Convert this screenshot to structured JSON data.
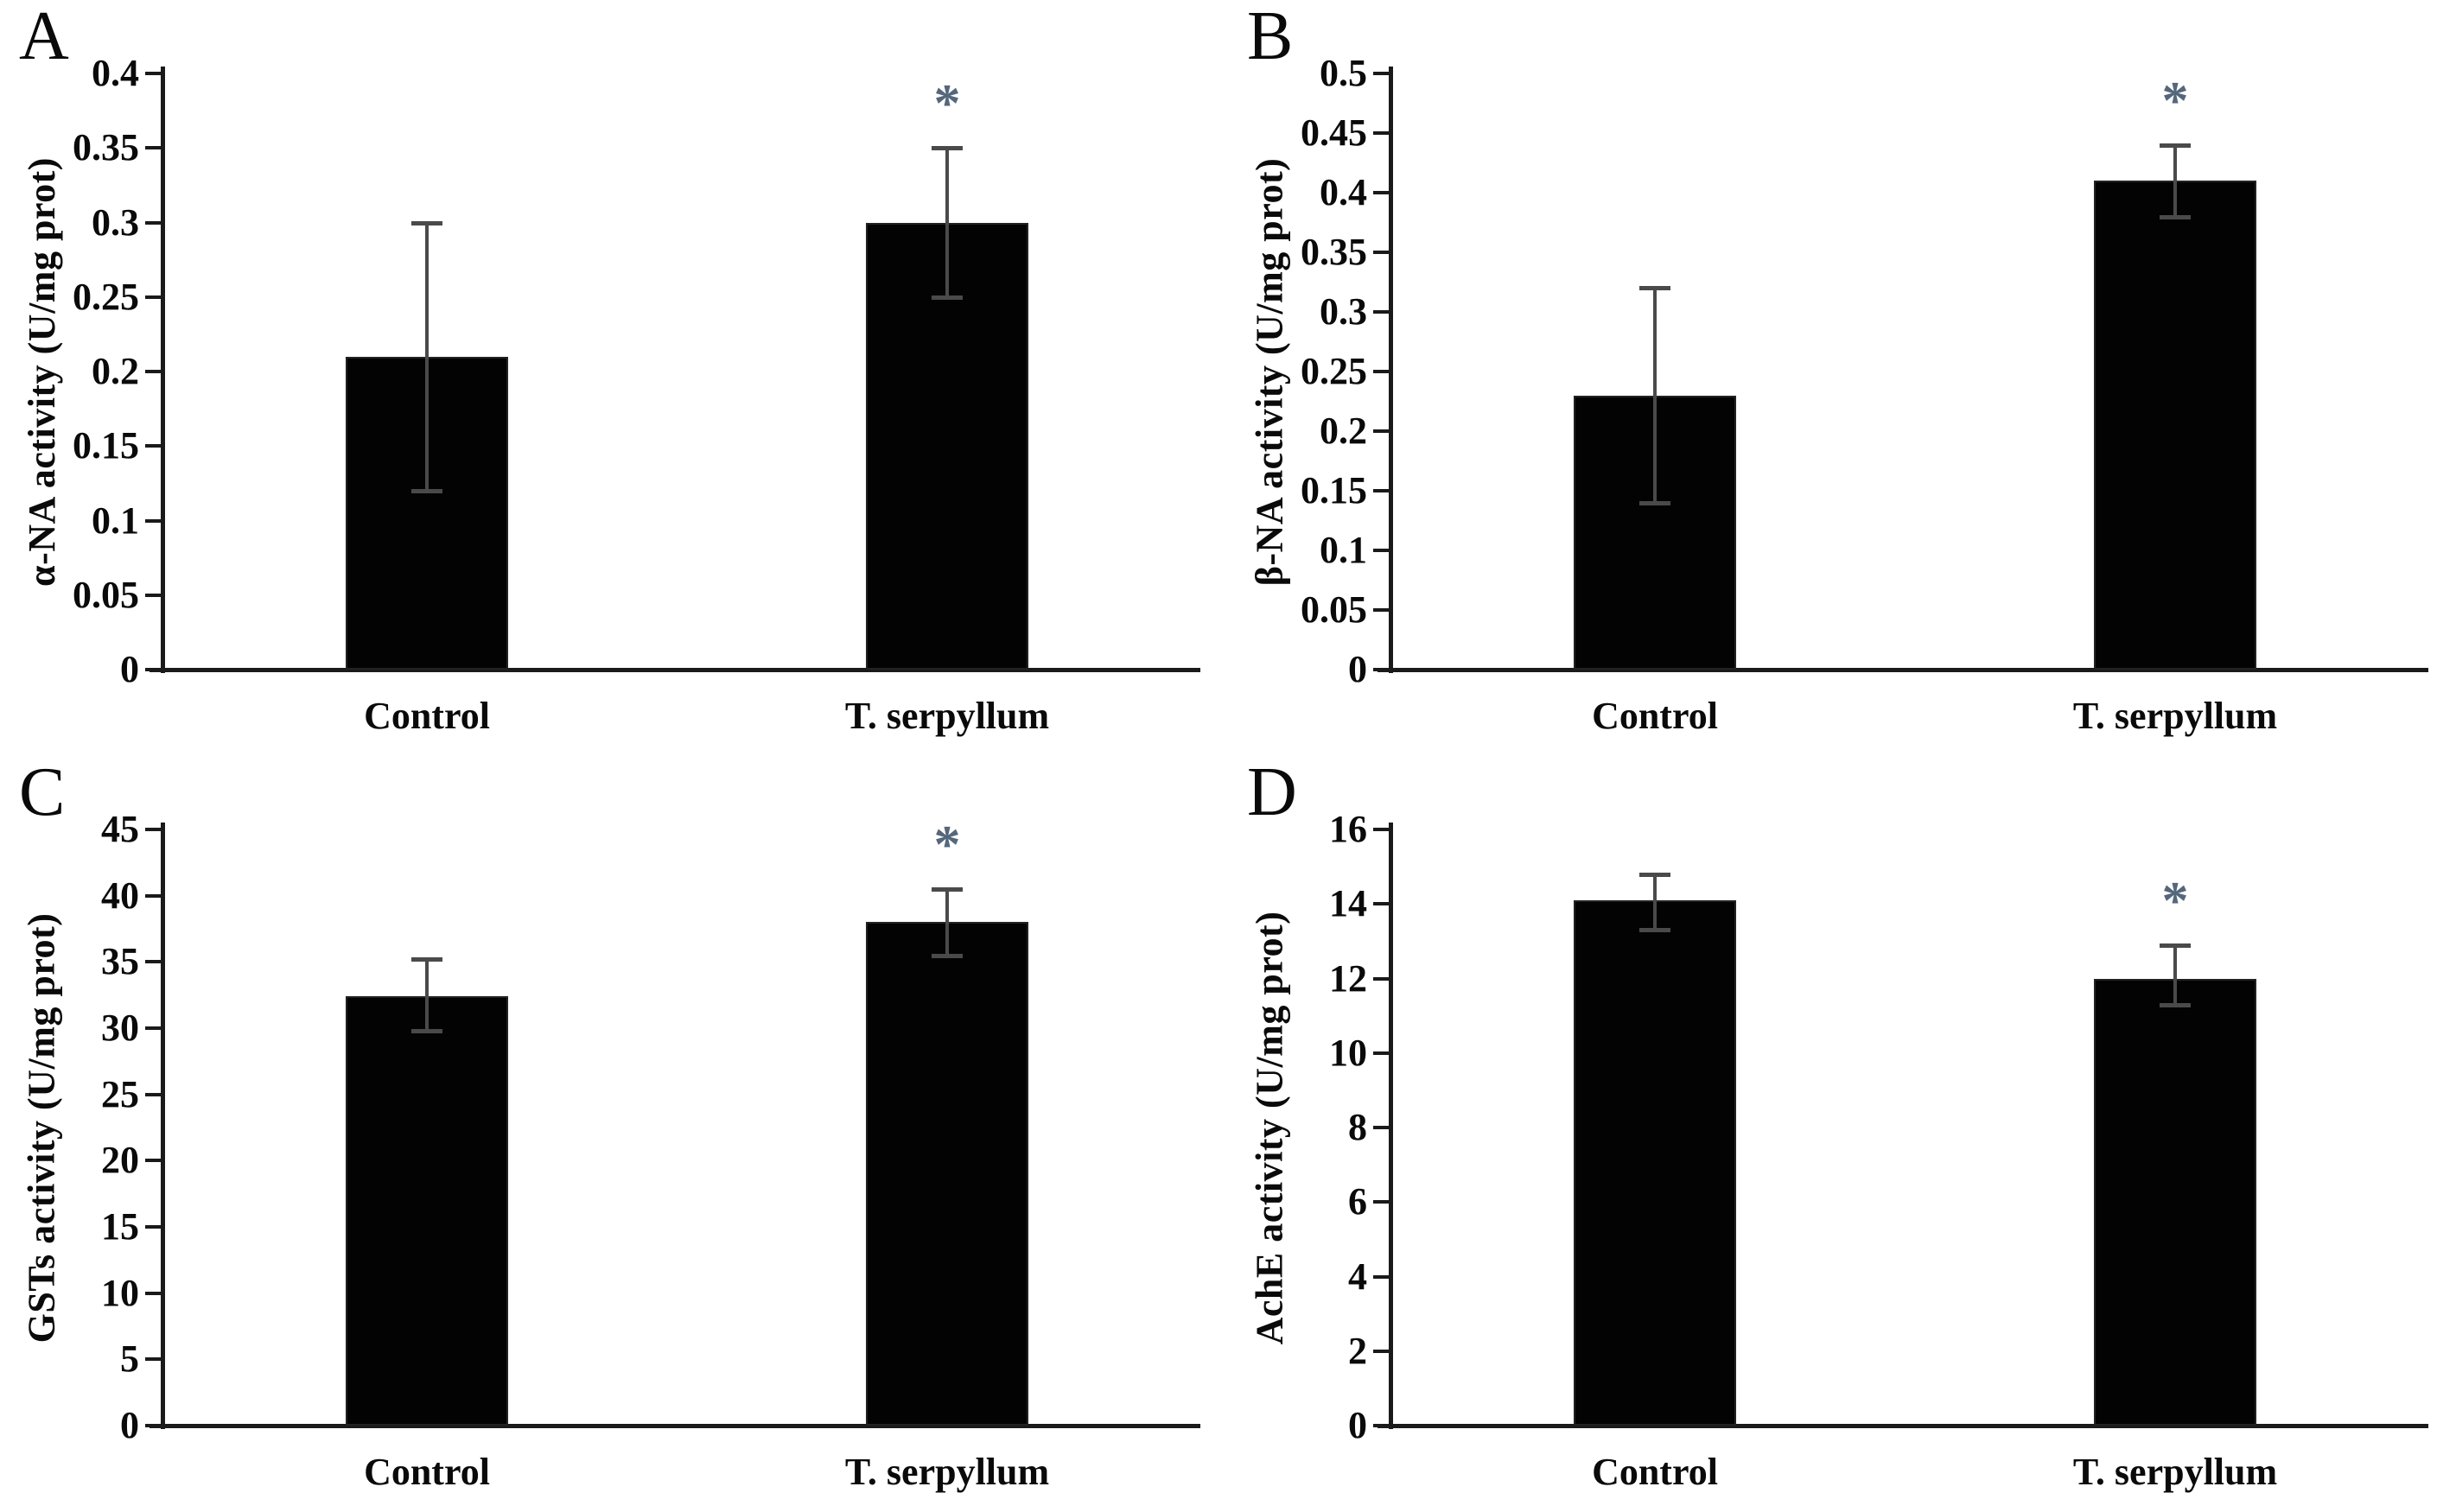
{
  "style": {
    "background": "#ffffff",
    "bar_color": "#030303",
    "error_color": "#4a4a4a",
    "significance_color": "#55677b",
    "axis_color": "#1a1a1a",
    "text_color": "#0a0a0a"
  },
  "chart_data": [
    {
      "panel": "A",
      "type": "bar",
      "categories": [
        "Control",
        "T. serpyllum"
      ],
      "values": [
        0.21,
        0.3
      ],
      "error_low": [
        0.12,
        0.25
      ],
      "error_high": [
        0.3,
        0.35
      ],
      "significance": [
        "",
        "*"
      ],
      "ylabel": "α-NA activity (U/mg prot)",
      "xlabel": "",
      "ylim": [
        0,
        0.4
      ],
      "yticks": [
        0,
        0.05,
        0.1,
        0.15,
        0.2,
        0.25,
        0.3,
        0.35,
        0.4
      ],
      "ytick_labels": [
        "0",
        "0.05",
        "0.1",
        "0.15",
        "0.2",
        "0.25",
        "0.3",
        "0.35",
        "0.4"
      ],
      "grid": false,
      "legend": "none"
    },
    {
      "panel": "B",
      "type": "bar",
      "categories": [
        "Control",
        "T. serpyllum"
      ],
      "values": [
        0.23,
        0.41
      ],
      "error_low": [
        0.14,
        0.38
      ],
      "error_high": [
        0.32,
        0.44
      ],
      "significance": [
        "",
        "*"
      ],
      "ylabel": "β-NA activity (U/mg prot)",
      "xlabel": "",
      "ylim": [
        0,
        0.5
      ],
      "yticks": [
        0,
        0.05,
        0.1,
        0.15,
        0.2,
        0.25,
        0.3,
        0.35,
        0.4,
        0.45,
        0.5
      ],
      "ytick_labels": [
        "0",
        "0.05",
        "0.1",
        "0.15",
        "0.2",
        "0.25",
        "0.3",
        "0.35",
        "0.4",
        "0.45",
        "0.5"
      ],
      "grid": false,
      "legend": "none"
    },
    {
      "panel": "C",
      "type": "bar",
      "categories": [
        "Control",
        "T. serpyllum"
      ],
      "values": [
        32.4,
        38.0
      ],
      "error_low": [
        29.8,
        35.5
      ],
      "error_high": [
        35.2,
        40.5
      ],
      "significance": [
        "",
        "*"
      ],
      "ylabel": "GSTs activity (U/mg prot)",
      "xlabel": "",
      "ylim": [
        0,
        45
      ],
      "yticks": [
        0,
        5,
        10,
        15,
        20,
        25,
        30,
        35,
        40,
        45
      ],
      "ytick_labels": [
        "0",
        "5",
        "10",
        "15",
        "20",
        "25",
        "30",
        "35",
        "40",
        "45"
      ],
      "grid": false,
      "legend": "none"
    },
    {
      "panel": "D",
      "type": "bar",
      "categories": [
        "Control",
        "T. serpyllum"
      ],
      "values": [
        14.1,
        12.0
      ],
      "error_low": [
        13.3,
        11.3
      ],
      "error_high": [
        14.8,
        12.9
      ],
      "significance": [
        "",
        "*"
      ],
      "ylabel": "AchE activity (U/mg prot)",
      "xlabel": "",
      "ylim": [
        0,
        16
      ],
      "yticks": [
        0,
        2,
        4,
        6,
        8,
        10,
        12,
        14,
        16
      ],
      "ytick_labels": [
        "0",
        "2",
        "4",
        "6",
        "8",
        "10",
        "12",
        "14",
        "16"
      ],
      "grid": false,
      "legend": "none"
    }
  ]
}
